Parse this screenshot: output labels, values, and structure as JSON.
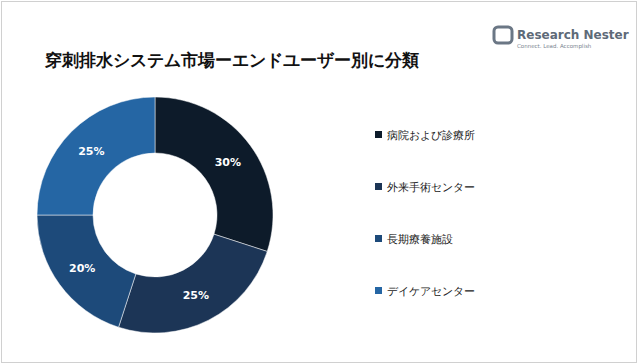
{
  "chart_data": {
    "type": "pie",
    "title": "穿刺排水システム市場ーエンドユーザー別に分類",
    "categories": [
      "病院および診療所",
      "外来手術センター",
      "長期療養施設",
      "デイケアセンター"
    ],
    "values": [
      30,
      25,
      20,
      25
    ],
    "value_labels": [
      "30%",
      "25%",
      "20%",
      "25%"
    ],
    "colors": [
      "#0d1b2a",
      "#1c3556",
      "#1d4a7a",
      "#2566a4"
    ],
    "data_labels": true,
    "legend": "right",
    "annotations": [
      "Research Nester",
      "Connect. Lead. Accomplish"
    ]
  }
}
